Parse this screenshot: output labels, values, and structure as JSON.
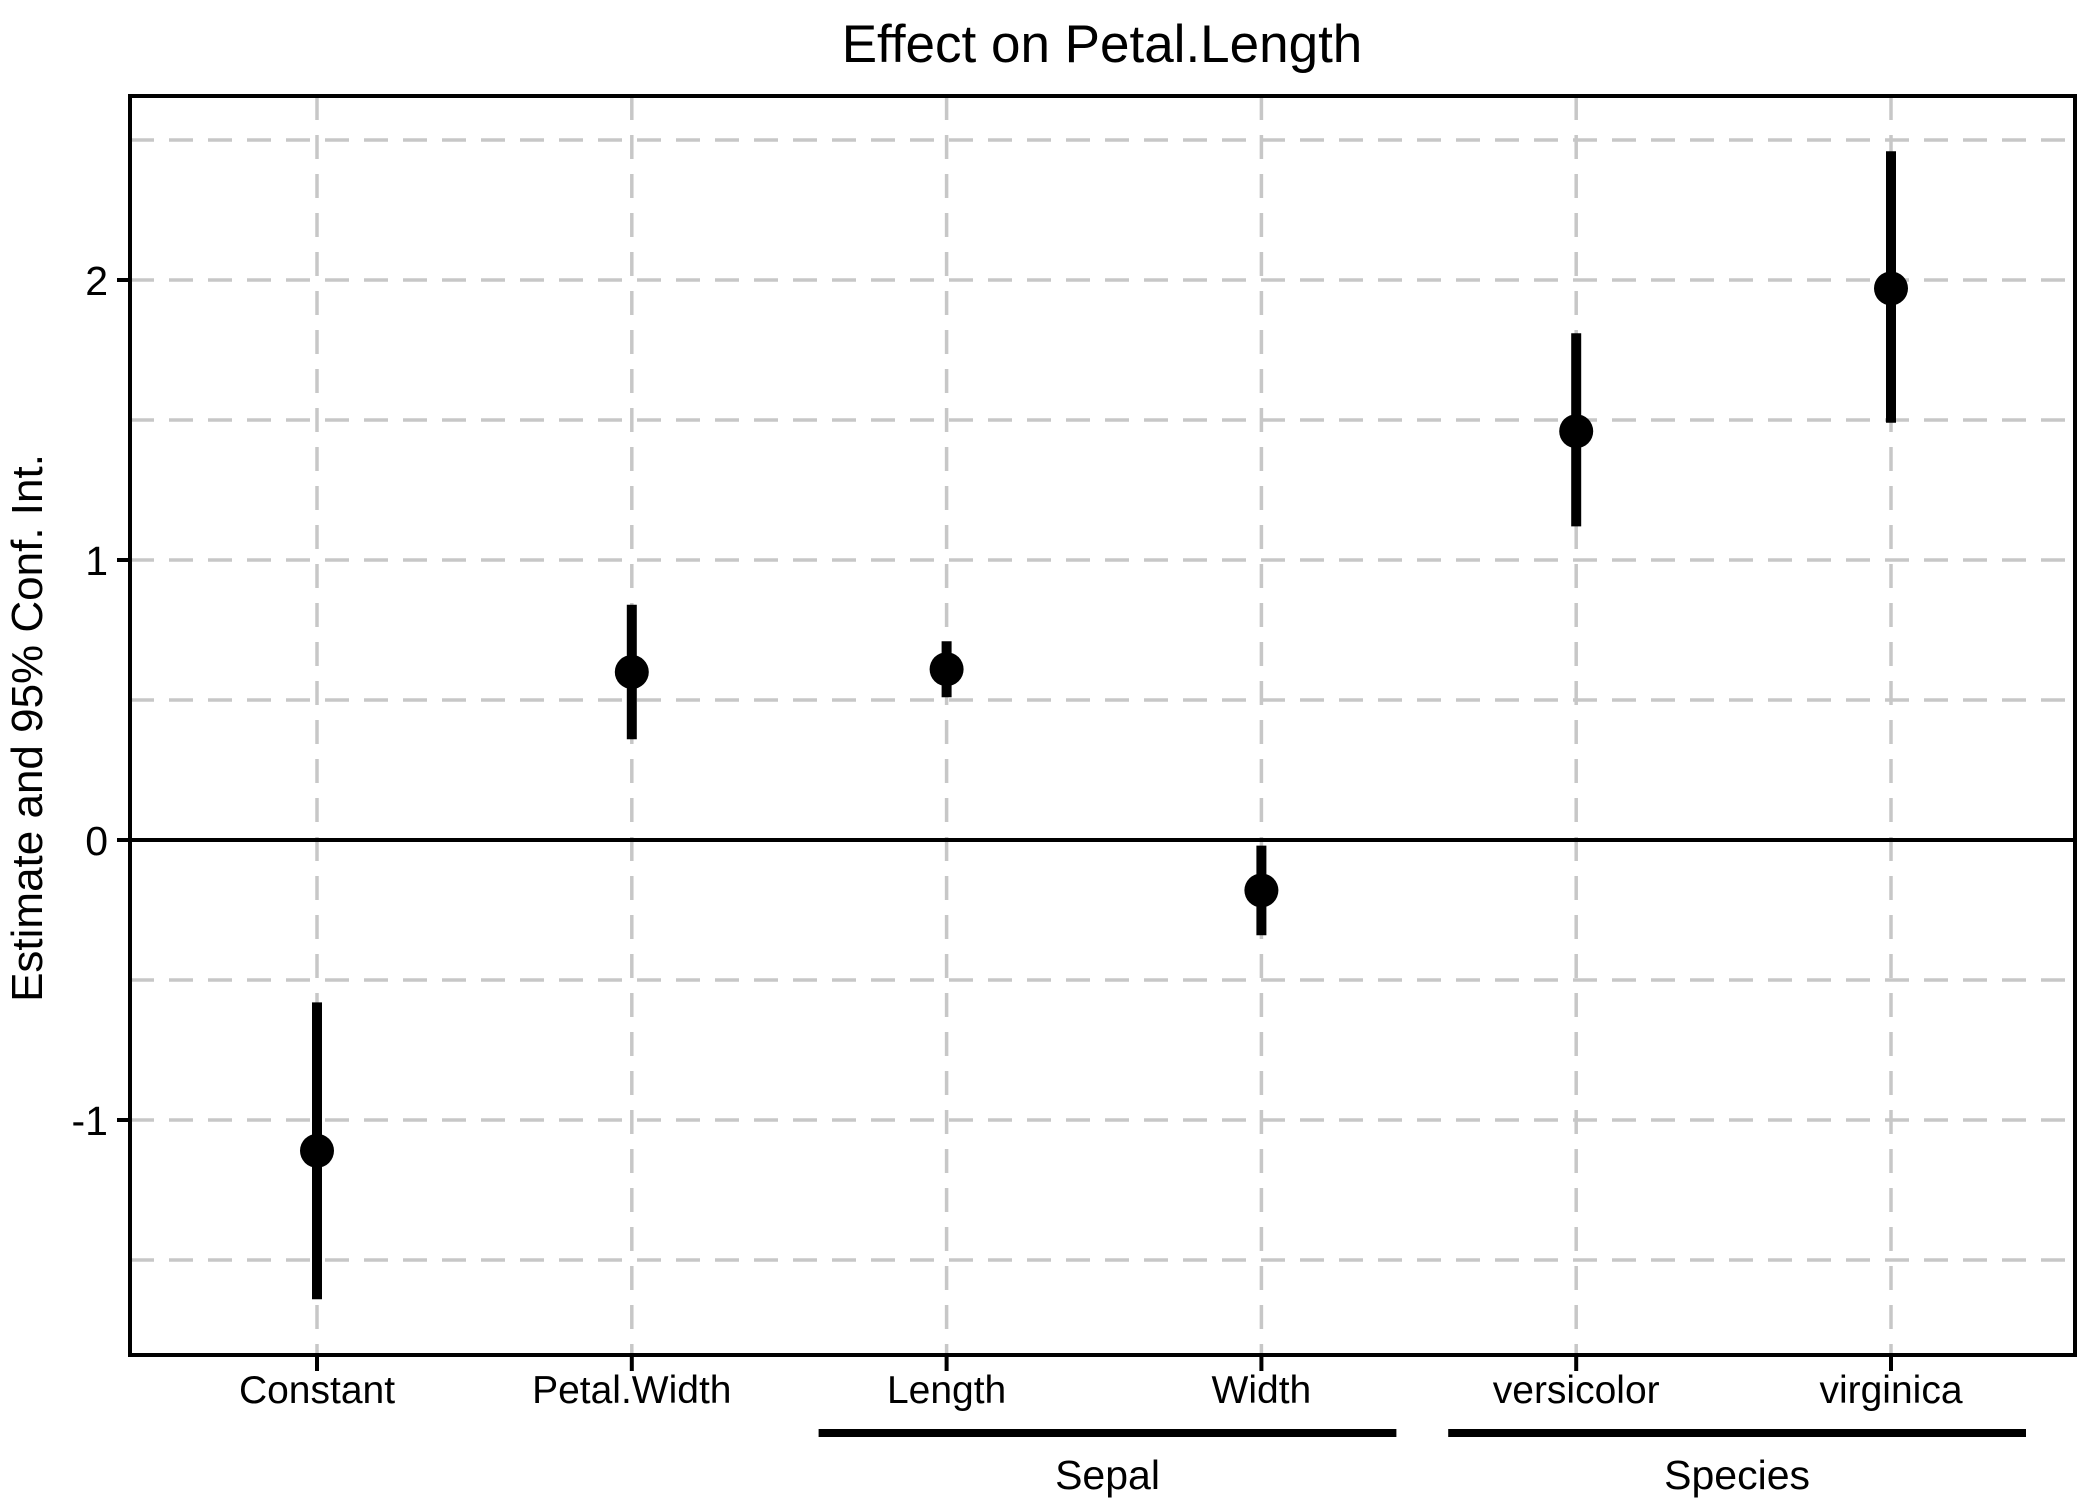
{
  "chart_data": {
    "type": "pointrange",
    "title": "Effect on Petal.Length",
    "ylabel": "Estimate and 95% Conf. Int.",
    "xlabel": "",
    "ylim": [
      -1.85,
      2.65
    ],
    "ytick_values": [
      -1,
      0,
      1,
      2
    ],
    "ytick_labels": [
      "-1",
      "0",
      "1",
      "2"
    ],
    "gridline_values": [
      2.5,
      2,
      1.5,
      1,
      0.5,
      -0.5,
      -1,
      -1.5
    ],
    "grid_dashed": true,
    "zero_reference_line": 0,
    "legend_position": "none",
    "categories": [
      {
        "label": "Constant",
        "group": null,
        "estimate": -1.11,
        "ci_low": -1.64,
        "ci_high": -0.58
      },
      {
        "label": "Petal.Width",
        "group": null,
        "estimate": 0.6,
        "ci_low": 0.36,
        "ci_high": 0.84
      },
      {
        "label": "Length",
        "group": "Sepal",
        "estimate": 0.61,
        "ci_low": 0.51,
        "ci_high": 0.71
      },
      {
        "label": "Width",
        "group": "Sepal",
        "estimate": -0.18,
        "ci_low": -0.34,
        "ci_high": -0.02
      },
      {
        "label": "versicolor",
        "group": "Species",
        "estimate": 1.46,
        "ci_low": 1.12,
        "ci_high": 1.81
      },
      {
        "label": "virginica",
        "group": "Species",
        "estimate": 1.97,
        "ci_low": 1.49,
        "ci_high": 2.46
      }
    ],
    "groups": [
      {
        "label": "Sepal",
        "members": [
          "Length",
          "Width"
        ]
      },
      {
        "label": "Species",
        "members": [
          "versicolor",
          "virginica"
        ]
      }
    ],
    "colors": {
      "point": "#000000",
      "error_bar": "#000000",
      "axis": "#000000",
      "gridline": "#C7C7C7",
      "background": "#FFFFFF"
    }
  }
}
